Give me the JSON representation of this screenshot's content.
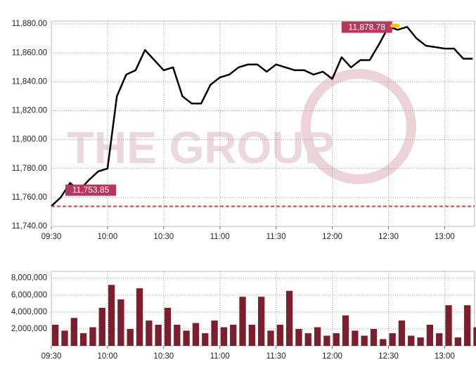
{
  "chart_data": [
    {
      "type": "line",
      "watermark": "THE GROUP",
      "x": [
        "09:30",
        "09:35",
        "09:40",
        "09:45",
        "09:50",
        "09:55",
        "10:00",
        "10:05",
        "10:10",
        "10:15",
        "10:20",
        "10:25",
        "10:30",
        "10:35",
        "10:40",
        "10:45",
        "10:50",
        "10:55",
        "11:00",
        "11:05",
        "11:10",
        "11:15",
        "11:20",
        "11:25",
        "11:30",
        "11:35",
        "11:40",
        "11:45",
        "11:50",
        "11:55",
        "12:00",
        "12:05",
        "12:10",
        "12:15",
        "12:20",
        "12:25",
        "12:30",
        "12:35",
        "12:40",
        "12:45",
        "12:50",
        "12:55",
        "13:00",
        "13:05",
        "13:10",
        "13:15"
      ],
      "series": [
        {
          "color": "#000000",
          "values": [
            11754,
            11760,
            11770,
            11765,
            11772,
            11778,
            11780,
            11830,
            11845,
            11848,
            11862,
            11855,
            11848,
            11850,
            11830,
            11825,
            11825,
            11838,
            11843,
            11845,
            11850,
            11852,
            11852,
            11847,
            11852,
            11850,
            11848,
            11848,
            11845,
            11847,
            11842,
            11857,
            11850,
            11855,
            11855,
            11866,
            11878,
            11876,
            11878,
            11870,
            11865,
            11864,
            11863,
            11863,
            11856,
            11856
          ]
        }
      ],
      "xlim": [
        "09:30",
        "13:16"
      ],
      "xticks": [
        "09:30",
        "10:00",
        "10:30",
        "11:00",
        "11:30",
        "12:00",
        "12:30",
        "13:00"
      ],
      "ylim": [
        11740,
        11882
      ],
      "yticks": [
        {
          "value": 11740,
          "label": "11,740.00"
        },
        {
          "value": 11760,
          "label": "11,760.00"
        },
        {
          "value": 11780,
          "label": "11,780.00"
        },
        {
          "value": 11800,
          "label": "11,800.00"
        },
        {
          "value": 11820,
          "label": "11,820.00"
        },
        {
          "value": 11840,
          "label": "11,840.00"
        },
        {
          "value": 11860,
          "label": "11,860.00"
        },
        {
          "value": 11880,
          "label": "11,880.00"
        }
      ],
      "grid": true,
      "reference_line": {
        "x": "09:30",
        "value": 11753.85,
        "label": "11,753.85",
        "color": "#e03a3a"
      },
      "max_label": {
        "x": "12:32",
        "value": 11878.78,
        "label": "11,878.78",
        "color": "#ffc000"
      }
    },
    {
      "type": "bar",
      "x": [
        "09:30",
        "09:35",
        "09:40",
        "09:45",
        "09:50",
        "09:55",
        "10:00",
        "10:05",
        "10:10",
        "10:15",
        "10:20",
        "10:25",
        "10:30",
        "10:35",
        "10:40",
        "10:45",
        "10:50",
        "10:55",
        "11:00",
        "11:05",
        "11:10",
        "11:15",
        "11:20",
        "11:25",
        "11:30",
        "11:35",
        "11:40",
        "11:45",
        "11:50",
        "11:55",
        "12:00",
        "12:05",
        "12:10",
        "12:15",
        "12:20",
        "12:25",
        "12:30",
        "12:35",
        "12:40",
        "12:45",
        "12:50",
        "12:55",
        "13:00",
        "13:05",
        "13:10",
        "13:15"
      ],
      "values": [
        2500000,
        1800000,
        3300000,
        1500000,
        2200000,
        4500000,
        7200000,
        5500000,
        2000000,
        6800000,
        3000000,
        2500000,
        4500000,
        2500000,
        1800000,
        2700000,
        1500000,
        3000000,
        2200000,
        2500000,
        5800000,
        2500000,
        5800000,
        1800000,
        2500000,
        6500000,
        2000000,
        1500000,
        2200000,
        1200000,
        1500000,
        3600000,
        1800000,
        1200000,
        2000000,
        800000,
        1500000,
        3000000,
        1200000,
        1000000,
        2500000,
        1500000,
        4800000,
        1000000,
        4800000,
        2200000
      ],
      "color": "#7b1f2e",
      "xlim": [
        "09:30",
        "13:16"
      ],
      "xticks": [
        "09:30",
        "10:00",
        "10:30",
        "11:00",
        "11:30",
        "12:00",
        "12:30",
        "13:00"
      ],
      "ylim": [
        0,
        8800000
      ],
      "yticks": [
        {
          "value": 2000000,
          "label": "2,000,000"
        },
        {
          "value": 4000000,
          "label": "4,000,000"
        },
        {
          "value": 6000000,
          "label": "6,000,000"
        },
        {
          "value": 8000000,
          "label": "8,000,000"
        }
      ],
      "grid": true
    }
  ]
}
